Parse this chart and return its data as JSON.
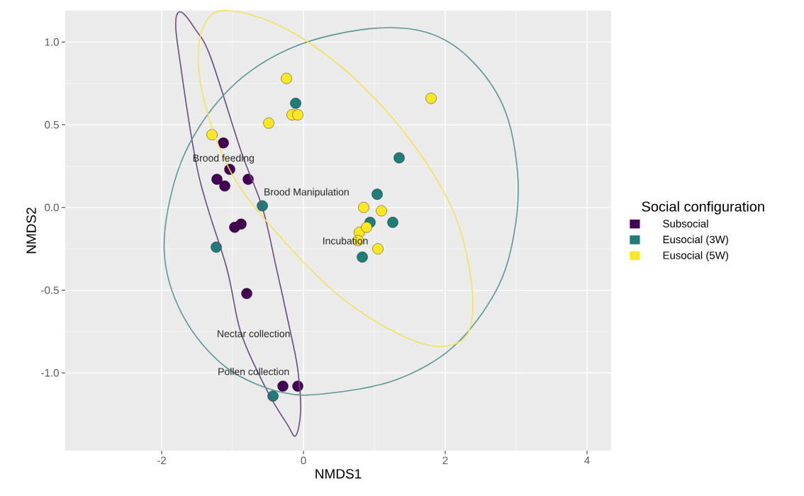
{
  "chart_data": {
    "type": "scatter",
    "xlabel": "NMDS1",
    "ylabel": "NMDS2",
    "legend_title": "Social configuration",
    "xlim": [
      -3.36,
      4.34
    ],
    "ylim": [
      -1.47,
      1.19
    ],
    "xticks": [
      -2,
      0,
      2,
      4
    ],
    "yticks": [
      {
        "value": -1,
        "label": "-1.0"
      },
      {
        "value": -0.5,
        "label": "-0.5"
      },
      {
        "value": 0,
        "label": "0.0"
      },
      {
        "value": 0.5,
        "label": "0.5"
      },
      {
        "value": 1,
        "label": "1.0"
      }
    ],
    "grid": true,
    "legend": "right",
    "series": [
      {
        "name": "Subsocial",
        "color": "#440154",
        "x": [
          -1.13,
          -1.04,
          -1.22,
          -1.11,
          -0.78,
          -0.97,
          -0.88,
          -0.8,
          -0.29,
          -0.08
        ],
        "values": [
          0.39,
          0.23,
          0.17,
          0.13,
          0.17,
          -0.12,
          -0.1,
          -0.52,
          -1.08,
          -1.08
        ]
      },
      {
        "name": "Eusocial (3W)",
        "color": "#1f7d78",
        "x": [
          -0.11,
          1.35,
          1.04,
          -0.58,
          0.94,
          1.26,
          0.83,
          -1.23,
          -0.43
        ],
        "values": [
          0.63,
          0.3,
          0.08,
          0.01,
          -0.09,
          -0.09,
          -0.3,
          -0.24,
          -1.14
        ]
      },
      {
        "name": "Eusocial (5W)",
        "color": "#fde725",
        "x": [
          -0.24,
          1.8,
          -0.16,
          -0.08,
          -0.49,
          -1.29,
          0.85,
          1.1,
          0.79,
          0.89,
          0.77,
          1.05
        ],
        "values": [
          0.78,
          0.66,
          0.56,
          0.56,
          0.51,
          0.44,
          0.0,
          -0.02,
          -0.15,
          -0.12,
          -0.2,
          -0.25
        ]
      }
    ],
    "annotations": [
      "Brood feeding",
      "Brood Manipulation",
      "Incubation",
      "Nectar collection",
      "Pollen collection"
    ]
  }
}
